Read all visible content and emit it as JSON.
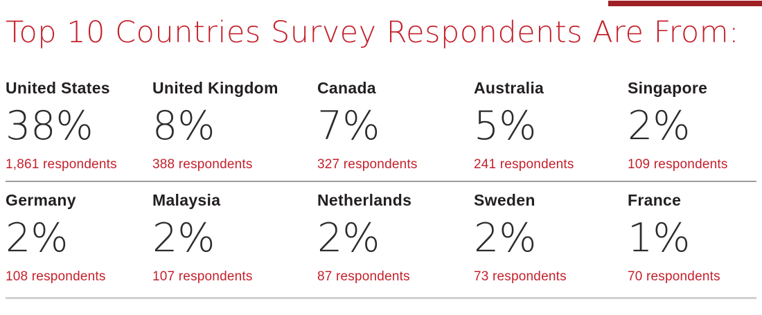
{
  "page": {
    "title": "Top 10 Countries Survey Respondents Are From:",
    "accent_red": "#c4202b",
    "top_bar_color": "#9f2125",
    "text_dark": "#231f20",
    "divider_mid_color": "#9c9c9c",
    "divider_bottom_color": "#d0d0d0"
  },
  "chart_data": {
    "type": "table",
    "title": "Top 10 Countries Survey Respondents Are From:",
    "columns": [
      "country",
      "percent",
      "respondents"
    ],
    "layout": "2 rows x 5 columns of stat cards",
    "rows": [
      {
        "country": "United States",
        "percent": 38,
        "percent_label": "38%",
        "respondents": 1861,
        "respondents_label": "1,861 respondents"
      },
      {
        "country": "United Kingdom",
        "percent": 8,
        "percent_label": "8%",
        "respondents": 388,
        "respondents_label": "388 respondents"
      },
      {
        "country": "Canada",
        "percent": 7,
        "percent_label": "7%",
        "respondents": 327,
        "respondents_label": "327 respondents"
      },
      {
        "country": "Australia",
        "percent": 5,
        "percent_label": "5%",
        "respondents": 241,
        "respondents_label": "241 respondents"
      },
      {
        "country": "Singapore",
        "percent": 2,
        "percent_label": "2%",
        "respondents": 109,
        "respondents_label": "109 respondents"
      },
      {
        "country": "Germany",
        "percent": 2,
        "percent_label": "2%",
        "respondents": 108,
        "respondents_label": "108 respondents"
      },
      {
        "country": "Malaysia",
        "percent": 2,
        "percent_label": "2%",
        "respondents": 107,
        "respondents_label": "107 respondents"
      },
      {
        "country": "Netherlands",
        "percent": 2,
        "percent_label": "2%",
        "respondents": 87,
        "respondents_label": "87 respondents"
      },
      {
        "country": "Sweden",
        "percent": 2,
        "percent_label": "2%",
        "respondents": 73,
        "respondents_label": "73 respondents"
      },
      {
        "country": "France",
        "percent": 1,
        "percent_label": "1%",
        "respondents": 70,
        "respondents_label": "70 respondents"
      }
    ]
  }
}
